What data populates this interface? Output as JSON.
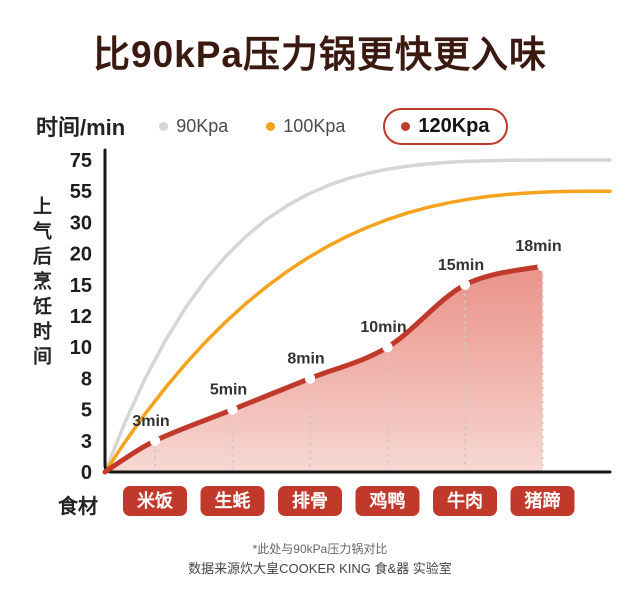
{
  "title": "比90kPa压力锅更快更入味",
  "legend": {
    "y_unit_label": "时间/min",
    "items": [
      {
        "label": "90Kpa"
      },
      {
        "label": "100Kpa"
      },
      {
        "label": "120Kpa"
      }
    ]
  },
  "y_axis_title": "上气后烹饪时间",
  "x_axis_title": "食材",
  "colors": {
    "series_90": "#d6d6d6",
    "series_100": "#f5a31e",
    "series_120": "#c0392b",
    "badge": "#c0392b",
    "title": "#3a1a10"
  },
  "chart_data": {
    "type": "line",
    "title": "比90kPa压力锅更快更入味",
    "xlabel": "食材",
    "ylabel": "上气后烹饪时间 (时间/min)",
    "categories": [
      "米饭",
      "生蚝",
      "排骨",
      "鸡鸭",
      "牛肉",
      "猪蹄"
    ],
    "y_ticks": [
      0,
      3,
      5,
      8,
      10,
      12,
      15,
      20,
      30,
      55,
      75
    ],
    "grid": false,
    "legend_position": "top",
    "series": [
      {
        "name": "90Kpa",
        "style": "smooth-rise",
        "end_value": 75
      },
      {
        "name": "100Kpa",
        "style": "smooth-rise",
        "end_value": 55
      },
      {
        "name": "120Kpa",
        "style": "points-area",
        "values": [
          3,
          5,
          8,
          10,
          15,
          18
        ],
        "point_labels": [
          "3min",
          "5min",
          "8min",
          "10min",
          "15min",
          "18min"
        ]
      }
    ]
  },
  "footnotes": {
    "line1": "*此处与90kPa压力锅对比",
    "line2": "数据来源炊大皇COOKER KING 食&器 实验室"
  }
}
